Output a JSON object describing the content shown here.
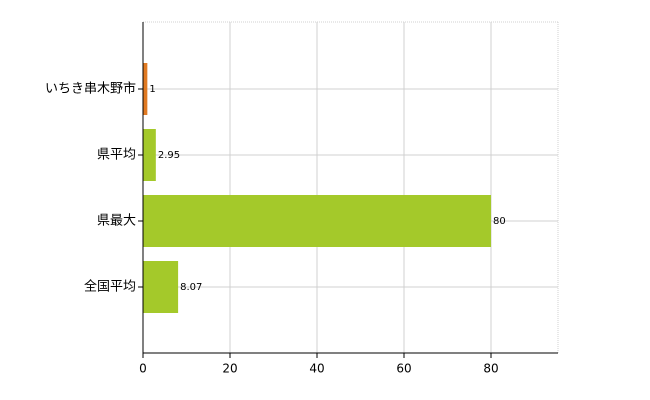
{
  "chart_data": {
    "type": "bar",
    "orientation": "horizontal",
    "categories": [
      "いちき串木野市",
      "県平均",
      "県最大",
      "全国平均"
    ],
    "values": [
      1,
      2.95,
      80,
      8.07
    ],
    "colors": [
      "#e07a22",
      "#a4c92a",
      "#a4c92a",
      "#a4c92a"
    ],
    "xlim": [
      0,
      95.4
    ],
    "xticks": [
      0,
      20,
      40,
      60,
      80
    ],
    "grid": true
  }
}
